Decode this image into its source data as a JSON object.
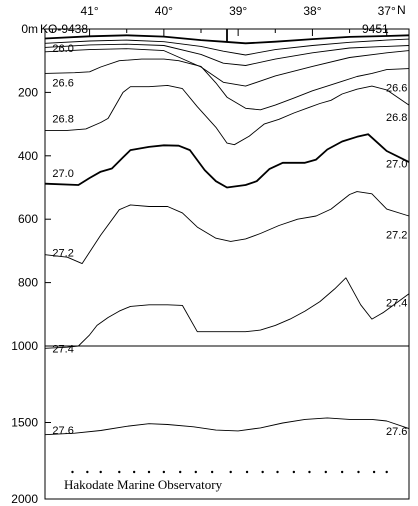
{
  "chart_data": {
    "type": "line",
    "title": "",
    "header": {
      "lat_labels": [
        "41°",
        "40°",
        "39°",
        "38°",
        "37°"
      ],
      "lat_unit": "N",
      "left_station": "KO-9438",
      "right_station": "9451"
    },
    "xlim": [
      41.6,
      36.7
    ],
    "y_ticks": [
      {
        "value": 0,
        "label": "0m"
      },
      {
        "value": 200,
        "label": "200"
      },
      {
        "value": 400,
        "label": "400"
      },
      {
        "value": 600,
        "label": "600"
      },
      {
        "value": 800,
        "label": "800"
      },
      {
        "value": 1000,
        "label": "1000"
      },
      {
        "value": 1500,
        "label": "1500"
      },
      {
        "value": 2000,
        "label": "2000"
      }
    ],
    "ylim": [
      0,
      2000
    ],
    "depth_break": 1000,
    "stations_lat": [
      41.23,
      41.03,
      40.85,
      40.6,
      40.4,
      40.2,
      40.0,
      39.78,
      39.57,
      39.35,
      39.1,
      38.88,
      38.67,
      38.47,
      38.25,
      38.04,
      37.82,
      37.6,
      37.38,
      37.17,
      37.0
    ],
    "series": [
      {
        "name": "26.0",
        "label_lat": 41.5,
        "label_depth": 60,
        "bold": true,
        "points": [
          [
            41.6,
            30
          ],
          [
            41.0,
            23
          ],
          [
            40.5,
            20
          ],
          [
            40.0,
            24
          ],
          [
            39.5,
            35
          ],
          [
            39.2,
            40
          ],
          [
            38.9,
            45
          ],
          [
            38.5,
            40
          ],
          [
            38.0,
            32
          ],
          [
            37.5,
            25
          ],
          [
            37.0,
            22
          ],
          [
            36.7,
            20
          ]
        ]
      },
      {
        "name": "",
        "bold": true,
        "points": [
          [
            39.15,
            0
          ],
          [
            39.15,
            40
          ]
        ]
      },
      {
        "name": "",
        "bold": false,
        "points": [
          [
            41.6,
            45
          ],
          [
            41.0,
            38
          ],
          [
            40.5,
            35
          ],
          [
            40.0,
            40
          ],
          [
            39.5,
            55
          ],
          [
            39.2,
            70
          ],
          [
            38.9,
            82
          ],
          [
            38.5,
            65
          ],
          [
            38.0,
            52
          ],
          [
            37.5,
            42
          ],
          [
            37.0,
            35
          ],
          [
            36.7,
            32
          ]
        ]
      },
      {
        "name": "",
        "bold": false,
        "points": [
          [
            41.6,
            58
          ],
          [
            41.0,
            50
          ],
          [
            40.5,
            48
          ],
          [
            40.0,
            52
          ],
          [
            39.5,
            80
          ],
          [
            39.2,
            108
          ],
          [
            38.9,
            115
          ],
          [
            38.5,
            95
          ],
          [
            38.0,
            75
          ],
          [
            37.5,
            60
          ],
          [
            37.0,
            55
          ],
          [
            36.7,
            52
          ]
        ]
      },
      {
        "name": "",
        "bold": false,
        "points": [
          [
            41.6,
            72
          ],
          [
            41.0,
            65
          ],
          [
            40.5,
            62
          ],
          [
            40.0,
            68
          ],
          [
            39.5,
            120
          ],
          [
            39.2,
            168
          ],
          [
            38.9,
            180
          ],
          [
            38.5,
            148
          ],
          [
            38.0,
            118
          ],
          [
            37.5,
            90
          ],
          [
            37.0,
            75
          ],
          [
            36.7,
            68
          ]
        ]
      },
      {
        "name": "26.6",
        "label_lat": 41.5,
        "label_depth": 168,
        "bold": false,
        "points": [
          [
            41.6,
            140
          ],
          [
            41.2,
            138
          ],
          [
            41.0,
            135
          ],
          [
            40.85,
            120
          ],
          [
            40.6,
            100
          ],
          [
            40.3,
            95
          ],
          [
            40.0,
            95
          ],
          [
            39.8,
            100
          ],
          [
            39.5,
            118
          ],
          [
            39.3,
            170
          ],
          [
            39.15,
            215
          ],
          [
            38.9,
            250
          ],
          [
            38.7,
            255
          ],
          [
            38.5,
            240
          ],
          [
            38.25,
            218
          ],
          [
            38.0,
            195
          ],
          [
            37.8,
            180
          ],
          [
            37.6,
            165
          ],
          [
            37.4,
            150
          ],
          [
            37.2,
            140
          ],
          [
            37.0,
            128
          ],
          [
            36.7,
            125
          ]
        ]
      },
      {
        "name": "26.8",
        "label_lat": 41.5,
        "label_depth": 282,
        "bold": false,
        "points": [
          [
            41.6,
            320
          ],
          [
            41.3,
            320
          ],
          [
            41.05,
            315
          ],
          [
            40.85,
            295
          ],
          [
            40.75,
            282
          ],
          [
            40.55,
            200
          ],
          [
            40.45,
            182
          ],
          [
            40.2,
            182
          ],
          [
            39.95,
            178
          ],
          [
            39.75,
            188
          ],
          [
            39.55,
            245
          ],
          [
            39.3,
            310
          ],
          [
            39.15,
            360
          ],
          [
            39.05,
            365
          ],
          [
            38.85,
            338
          ],
          [
            38.65,
            300
          ],
          [
            38.45,
            285
          ],
          [
            38.25,
            265
          ],
          [
            38.05,
            248
          ],
          [
            37.9,
            235
          ],
          [
            37.75,
            225
          ],
          [
            37.6,
            205
          ],
          [
            37.4,
            190
          ],
          [
            37.2,
            180
          ],
          [
            37.0,
            192
          ],
          [
            36.7,
            240
          ]
        ]
      },
      {
        "name": "27.0",
        "label_lat": 41.5,
        "label_depth": 455,
        "bold": true,
        "points": [
          [
            41.6,
            488
          ],
          [
            41.15,
            492
          ],
          [
            41.0,
            470
          ],
          [
            40.85,
            450
          ],
          [
            40.7,
            440
          ],
          [
            40.55,
            405
          ],
          [
            40.45,
            382
          ],
          [
            40.2,
            372
          ],
          [
            40.0,
            367
          ],
          [
            39.8,
            368
          ],
          [
            39.65,
            382
          ],
          [
            39.45,
            445
          ],
          [
            39.3,
            480
          ],
          [
            39.15,
            500
          ],
          [
            38.9,
            492
          ],
          [
            38.75,
            480
          ],
          [
            38.58,
            442
          ],
          [
            38.4,
            422
          ],
          [
            38.1,
            422
          ],
          [
            37.95,
            412
          ],
          [
            37.8,
            380
          ],
          [
            37.6,
            355
          ],
          [
            37.4,
            340
          ],
          [
            37.25,
            332
          ],
          [
            37.0,
            385
          ],
          [
            36.7,
            420
          ]
        ]
      },
      {
        "name": "27.2",
        "label_lat": 41.5,
        "label_depth": 705,
        "bold": false,
        "points": [
          [
            41.6,
            712
          ],
          [
            41.3,
            720
          ],
          [
            41.1,
            740
          ],
          [
            40.85,
            650
          ],
          [
            40.6,
            570
          ],
          [
            40.45,
            555
          ],
          [
            40.2,
            560
          ],
          [
            39.95,
            560
          ],
          [
            39.75,
            580
          ],
          [
            39.55,
            625
          ],
          [
            39.3,
            660
          ],
          [
            39.1,
            670
          ],
          [
            38.9,
            662
          ],
          [
            38.7,
            645
          ],
          [
            38.45,
            620
          ],
          [
            38.2,
            600
          ],
          [
            37.95,
            590
          ],
          [
            37.75,
            568
          ],
          [
            37.5,
            522
          ],
          [
            37.4,
            513
          ],
          [
            37.2,
            520
          ],
          [
            37.0,
            568
          ],
          [
            36.7,
            590
          ]
        ]
      },
      {
        "name": "27.4",
        "label_lat": 41.5,
        "label_depth": 1015,
        "bold": false,
        "points": [
          [
            41.6,
            1015
          ],
          [
            41.3,
            1008
          ],
          [
            41.15,
            1000
          ],
          [
            41.0,
            965
          ],
          [
            40.9,
            935
          ],
          [
            40.75,
            910
          ],
          [
            40.6,
            890
          ],
          [
            40.45,
            875
          ],
          [
            40.2,
            870
          ],
          [
            39.95,
            870
          ],
          [
            39.75,
            872
          ],
          [
            39.55,
            955
          ],
          [
            39.3,
            955
          ],
          [
            39.1,
            955
          ],
          [
            38.9,
            955
          ],
          [
            38.7,
            950
          ],
          [
            38.5,
            935
          ],
          [
            38.3,
            915
          ],
          [
            38.1,
            890
          ],
          [
            37.9,
            860
          ],
          [
            37.7,
            820
          ],
          [
            37.55,
            785
          ],
          [
            37.35,
            870
          ],
          [
            37.2,
            915
          ],
          [
            37.05,
            895
          ],
          [
            36.7,
            835
          ]
        ]
      },
      {
        "name": "27.6",
        "label_lat": 41.5,
        "label_depth": 1550,
        "bold": false,
        "points": [
          [
            41.6,
            1580
          ],
          [
            41.2,
            1570
          ],
          [
            40.85,
            1552
          ],
          [
            40.5,
            1525
          ],
          [
            40.2,
            1508
          ],
          [
            39.95,
            1513
          ],
          [
            39.6,
            1528
          ],
          [
            39.3,
            1550
          ],
          [
            39.0,
            1555
          ],
          [
            38.7,
            1535
          ],
          [
            38.4,
            1503
          ],
          [
            38.1,
            1480
          ],
          [
            37.8,
            1470
          ],
          [
            37.5,
            1480
          ],
          [
            37.2,
            1480
          ],
          [
            37.0,
            1490
          ],
          [
            36.7,
            1540
          ]
        ]
      }
    ],
    "right_labels": [
      {
        "text": "26.6",
        "depth": 185
      },
      {
        "text": "26.8",
        "depth": 277
      },
      {
        "text": "27.0",
        "depth": 425
      },
      {
        "text": "27.2",
        "depth": 648
      },
      {
        "text": "27.4",
        "depth": 863
      },
      {
        "text": "27.6",
        "depth": 1555
      }
    ],
    "credit": "Hakodate Marine Observatory"
  }
}
